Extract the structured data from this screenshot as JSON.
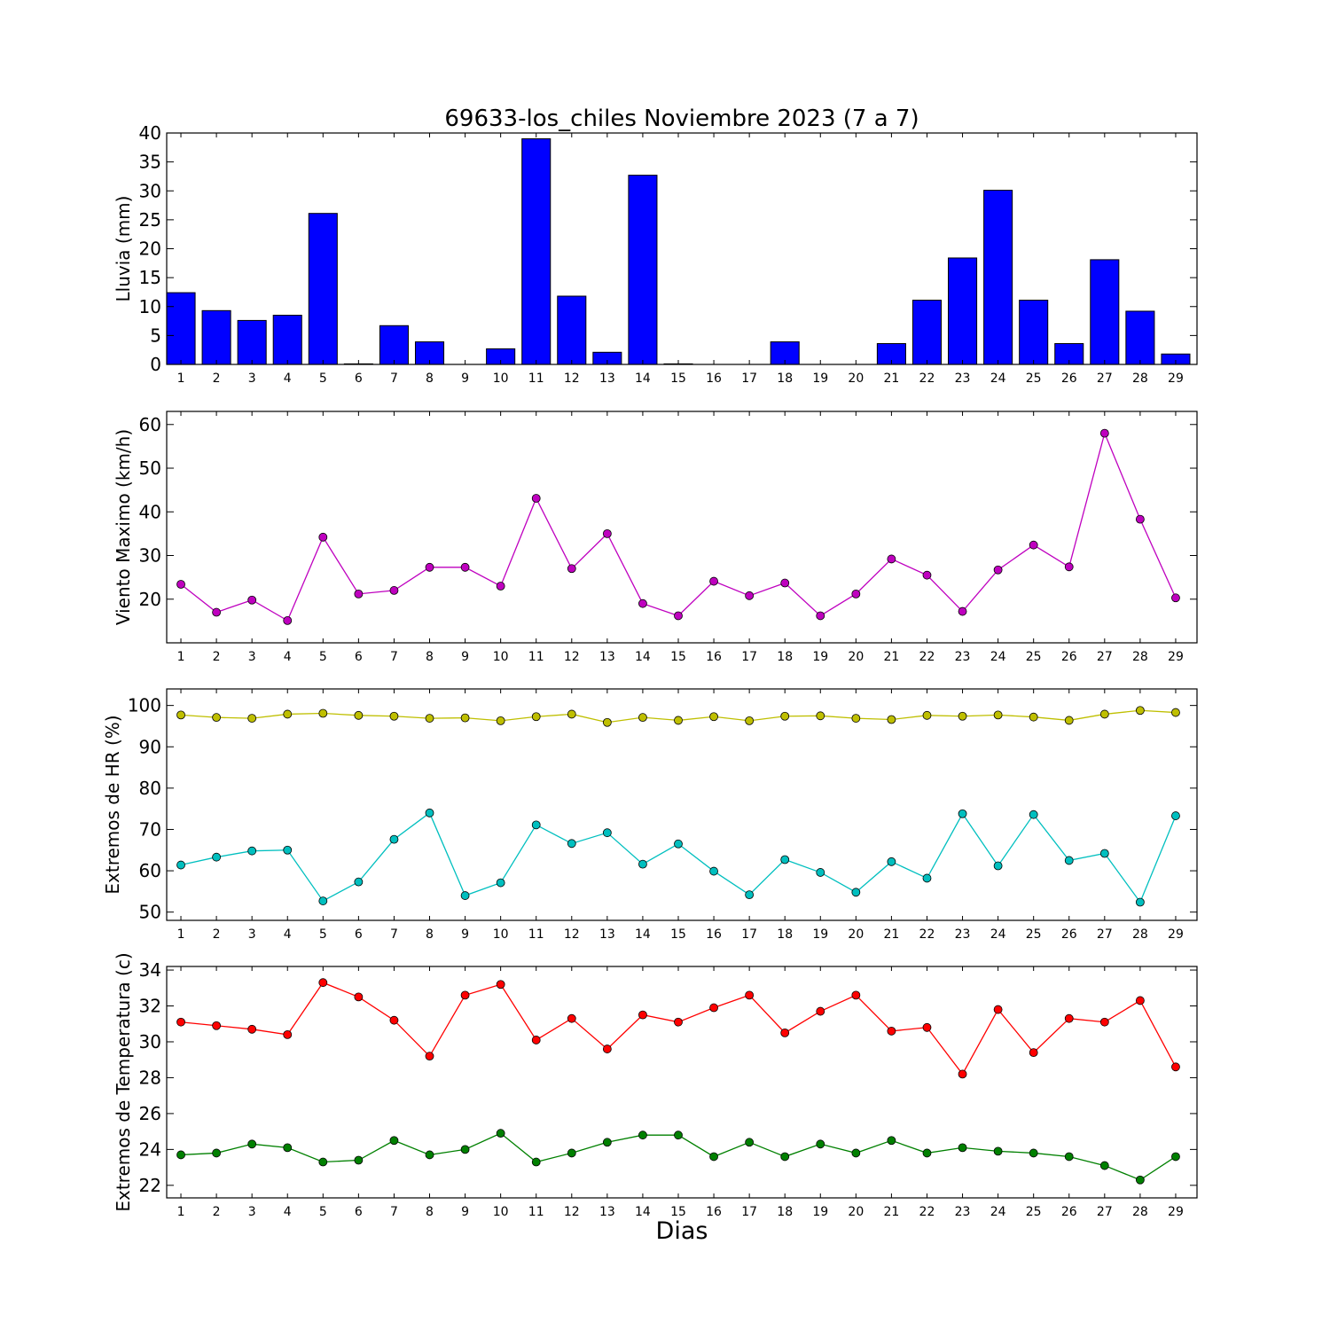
{
  "figure": {
    "title": "69633-los_chiles Noviembre 2023  (7 a 7)",
    "xlabel": "Dias"
  },
  "chart_data": [
    {
      "type": "bar",
      "ylabel": "Lluvia (mm)",
      "ylim": [
        0,
        40
      ],
      "yticks": [
        0,
        5,
        10,
        15,
        20,
        25,
        30,
        35,
        40
      ],
      "categories": [
        1,
        2,
        3,
        4,
        5,
        6,
        7,
        8,
        9,
        10,
        11,
        12,
        13,
        14,
        15,
        16,
        17,
        18,
        19,
        20,
        21,
        22,
        23,
        24,
        25,
        26,
        27,
        28,
        29
      ],
      "values": [
        12.4,
        9.3,
        7.6,
        8.5,
        26.1,
        0.1,
        6.7,
        3.9,
        0.0,
        2.7,
        39.0,
        11.8,
        2.1,
        32.7,
        0.1,
        0.0,
        0.0,
        3.9,
        0.0,
        0.0,
        3.6,
        11.1,
        18.4,
        30.1,
        11.1,
        3.6,
        18.1,
        9.2,
        1.8
      ],
      "color": "#0000ff"
    },
    {
      "type": "line",
      "ylabel": "Viento Maximo (km/h)",
      "ylim": [
        10,
        63
      ],
      "yticks": [
        20,
        30,
        40,
        50,
        60
      ],
      "x": [
        1,
        2,
        3,
        4,
        5,
        6,
        7,
        8,
        9,
        10,
        11,
        12,
        13,
        14,
        15,
        16,
        17,
        18,
        19,
        20,
        21,
        22,
        23,
        24,
        25,
        26,
        27,
        28,
        29
      ],
      "series": [
        {
          "values": [
            23.4,
            17.0,
            19.8,
            15.1,
            34.2,
            21.2,
            22.0,
            27.3,
            27.3,
            23.0,
            43.1,
            27.0,
            35.0,
            19.0,
            16.2,
            24.1,
            20.8,
            23.7,
            16.2,
            21.2,
            29.2,
            25.5,
            17.2,
            26.7,
            32.4,
            27.4,
            58.0,
            38.3,
            20.3
          ],
          "color": "#bf00bf"
        }
      ]
    },
    {
      "type": "line",
      "ylabel": "Extremos de HR (%)",
      "ylim": [
        48,
        104
      ],
      "yticks": [
        50,
        60,
        70,
        80,
        90,
        100
      ],
      "x": [
        1,
        2,
        3,
        4,
        5,
        6,
        7,
        8,
        9,
        10,
        11,
        12,
        13,
        14,
        15,
        16,
        17,
        18,
        19,
        20,
        21,
        22,
        23,
        24,
        25,
        26,
        27,
        28,
        29
      ],
      "series": [
        {
          "values": [
            97.7,
            97.1,
            96.9,
            97.9,
            98.1,
            97.6,
            97.4,
            96.9,
            97.0,
            96.3,
            97.3,
            97.9,
            95.9,
            97.1,
            96.4,
            97.3,
            96.3,
            97.4,
            97.5,
            96.9,
            96.6,
            97.6,
            97.4,
            97.7,
            97.2,
            96.4,
            97.9,
            98.8,
            98.3
          ],
          "color": "#bfbf00"
        },
        {
          "values": [
            61.4,
            63.3,
            64.8,
            65.0,
            52.7,
            57.3,
            67.6,
            74.0,
            54.0,
            57.1,
            71.1,
            66.6,
            69.2,
            61.6,
            66.5,
            59.9,
            54.2,
            62.7,
            59.6,
            54.8,
            62.2,
            58.2,
            73.8,
            61.2,
            73.6,
            62.5,
            64.2,
            52.4,
            73.3
          ],
          "color": "#00bfbf"
        }
      ]
    },
    {
      "type": "line",
      "ylabel": "Extremos de Temperatura (c)",
      "ylim": [
        21.3,
        34.2
      ],
      "yticks": [
        22,
        24,
        26,
        28,
        30,
        32,
        34
      ],
      "x": [
        1,
        2,
        3,
        4,
        5,
        6,
        7,
        8,
        9,
        10,
        11,
        12,
        13,
        14,
        15,
        16,
        17,
        18,
        19,
        20,
        21,
        22,
        23,
        24,
        25,
        26,
        27,
        28,
        29
      ],
      "series": [
        {
          "values": [
            31.1,
            30.9,
            30.7,
            30.4,
            33.3,
            32.5,
            31.2,
            29.2,
            32.6,
            33.2,
            30.1,
            31.3,
            29.6,
            31.5,
            31.1,
            31.9,
            32.6,
            30.5,
            31.7,
            32.6,
            30.6,
            30.8,
            28.2,
            31.8,
            29.4,
            31.3,
            31.1,
            32.3,
            28.6
          ],
          "color": "#ff0000"
        },
        {
          "values": [
            23.7,
            23.8,
            24.3,
            24.1,
            23.3,
            23.4,
            24.5,
            23.7,
            24.0,
            24.9,
            23.3,
            23.8,
            24.4,
            24.8,
            24.8,
            23.6,
            24.4,
            23.6,
            24.3,
            23.8,
            24.5,
            23.8,
            24.1,
            23.9,
            23.8,
            23.6,
            23.1,
            22.3,
            23.6
          ],
          "color": "#008000"
        }
      ]
    }
  ]
}
